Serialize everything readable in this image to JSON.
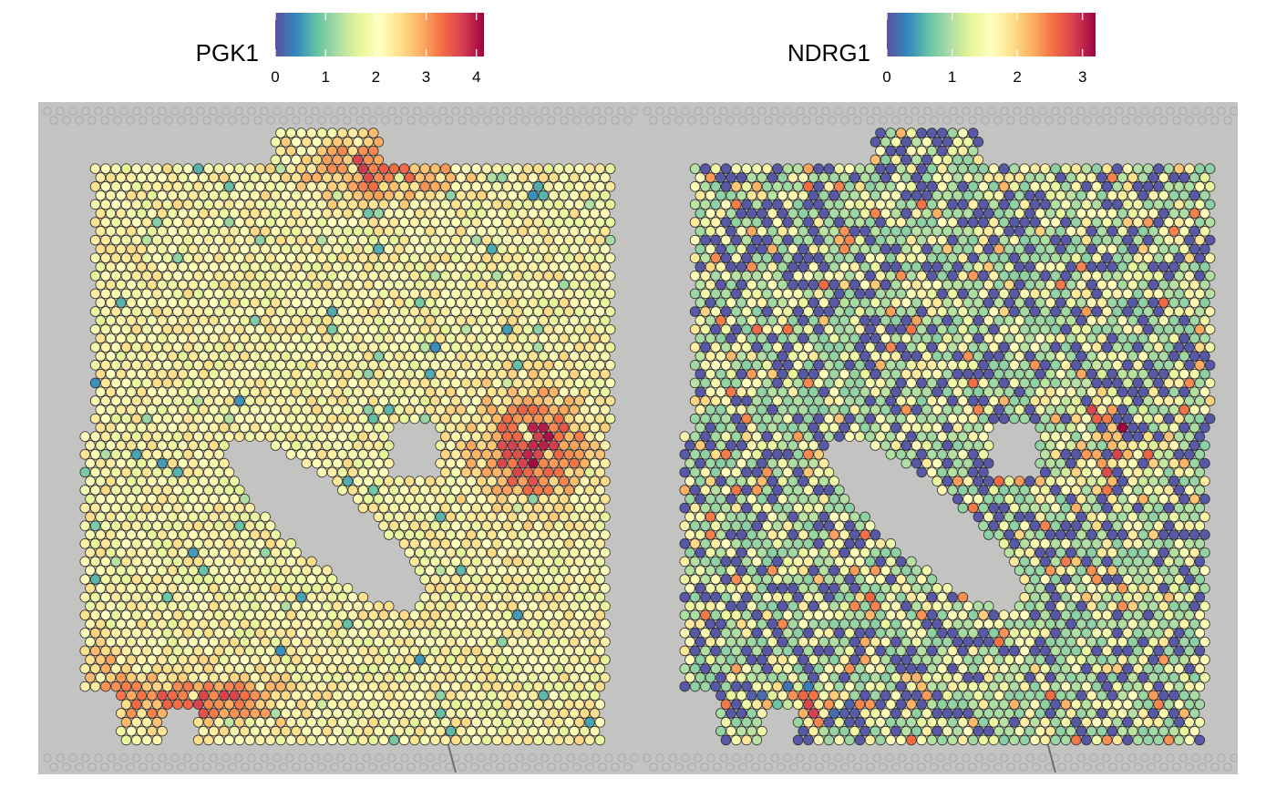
{
  "chart_data": [
    {
      "type": "scatter",
      "subtype": "spatial-transcriptomics-spot-plot",
      "title": "PGK1",
      "colorbar": {
        "label": "PGK1",
        "ticks": [
          0,
          1,
          2,
          3,
          4
        ],
        "tick_labels": [
          "0",
          "1",
          "2",
          "3",
          "4"
        ],
        "range": [
          0,
          4.15
        ],
        "palette": "Spectral (reversed)",
        "palette_colors": [
          "#5e4fa2",
          "#3288bd",
          "#66c2a5",
          "#abdda4",
          "#e6f598",
          "#ffffbf",
          "#fee08b",
          "#fdae61",
          "#f46d43",
          "#d53e4f",
          "#9e0142"
        ]
      },
      "background": "tissue histology image",
      "summary": {
        "typical_value": 2.2,
        "high_regions": [
          "top-center edge",
          "right-middle",
          "bottom-left edge"
        ],
        "low_regions": []
      }
    },
    {
      "type": "scatter",
      "subtype": "spatial-transcriptomics-spot-plot",
      "title": "NDRG1",
      "colorbar": {
        "label": "NDRG1",
        "ticks": [
          0,
          1,
          2,
          3
        ],
        "tick_labels": [
          "0",
          "1",
          "2",
          "3"
        ],
        "range": [
          0,
          3.2
        ],
        "palette": "Spectral (reversed)",
        "palette_colors": [
          "#5e4fa2",
          "#3288bd",
          "#66c2a5",
          "#abdda4",
          "#e6f598",
          "#ffffbf",
          "#fee08b",
          "#fdae61",
          "#f46d43",
          "#d53e4f",
          "#9e0142"
        ]
      },
      "background": "tissue histology image",
      "summary": {
        "typical_value": 0.9,
        "high_regions": [
          "right-middle",
          "bottom-left edge"
        ],
        "low_regions": [
          "scattered throughout"
        ]
      }
    }
  ]
}
